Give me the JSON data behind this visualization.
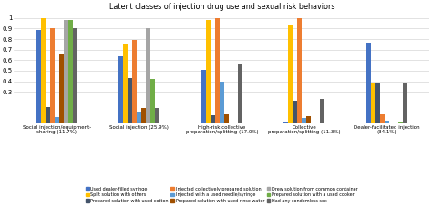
{
  "title": "Latent classes of injection drug use and sexual risk behaviors",
  "groups": [
    "Social injection/equipment-\nsharing (11.7%)",
    "Social injection (25.9%)",
    "High-risk collective\npreparation/splitting (17.0%)",
    "Collective\npreparation/splitting (11.3%)",
    "Dealer-facilitated injection\n(34.1%)"
  ],
  "series_names": [
    "Used dealer-filled syringe",
    "Split solution with others",
    "Prepared solution with used cotton",
    "Injected collectively prepared solution",
    "Injected with a used needle/syringe",
    "Prepared solution with used rinse water",
    "Drew solution from common container",
    "Prepared solution with a used cooker",
    "Had any condomless sex"
  ],
  "series_colors": [
    "#4472C4",
    "#FFC000",
    "#44546A",
    "#ED7D31",
    "#5B9BD5",
    "#A05000",
    "#A5A5A5",
    "#70AD47",
    "#636363"
  ],
  "values": [
    [
      0.89,
      0.64,
      0.51,
      0.02,
      0.77
    ],
    [
      1.0,
      0.75,
      0.98,
      0.94,
      0.38
    ],
    [
      0.16,
      0.43,
      0.08,
      0.22,
      0.38
    ],
    [
      0.9,
      0.79,
      1.0,
      1.0,
      0.09
    ],
    [
      0.06,
      0.11,
      0.4,
      0.05,
      0.03
    ],
    [
      0.66,
      0.15,
      0.09,
      0.07,
      0.0
    ],
    [
      0.98,
      0.9,
      0.0,
      0.0,
      0.0
    ],
    [
      0.98,
      0.42,
      0.0,
      0.0,
      0.02
    ],
    [
      0.9,
      0.15,
      0.57,
      0.23,
      0.38
    ]
  ],
  "ylim": [
    0,
    1.05
  ],
  "yticks": [
    0.3,
    0.4,
    0.5,
    0.6,
    0.7,
    0.8,
    0.9,
    1.0
  ],
  "ytick_labels": [
    "0.3",
    "0.4",
    "0.5",
    "0.6",
    "0.7",
    "0.8",
    "0.9",
    "1"
  ],
  "legend_cols": 3,
  "background_color": "#FFFFFF"
}
